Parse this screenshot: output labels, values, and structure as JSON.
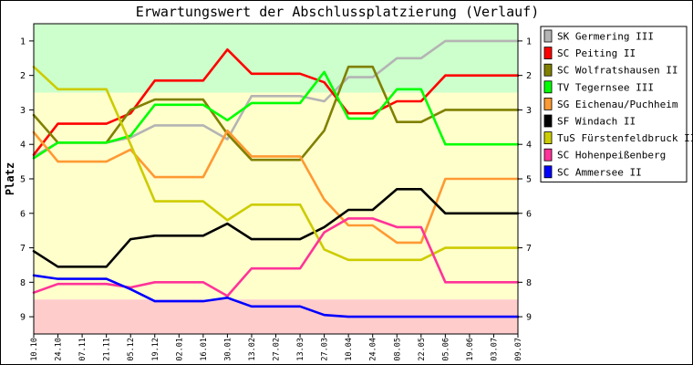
{
  "chart_data": {
    "type": "line",
    "title": "Erwartungswert der Abschlussplatzierung (Verlauf)",
    "ylabel": "Platz",
    "xlabel": "",
    "ylim": [
      0.5,
      9.5
    ],
    "y_inverted": true,
    "yticks": [
      1,
      2,
      3,
      4,
      5,
      6,
      7,
      8,
      9
    ],
    "x": [
      "10.10",
      "24.10",
      "07.11",
      "21.11",
      "05.12",
      "19.12",
      "02.01",
      "16.01",
      "30.01",
      "13.02",
      "27.02",
      "13.03",
      "27.03",
      "10.04",
      "24.04",
      "08.05",
      "22.05",
      "05.06",
      "19.06",
      "03.07",
      "09.07"
    ],
    "bands": [
      {
        "from": 0.5,
        "to": 2.5,
        "color": "#ccffcc"
      },
      {
        "from": 2.5,
        "to": 8.5,
        "color": "#ffffcc"
      },
      {
        "from": 8.5,
        "to": 9.5,
        "color": "#ffcccc"
      }
    ],
    "legend_position": "right",
    "series": [
      {
        "name": "SK Germering III",
        "color": "#b4b4b4",
        "values": [
          4.35,
          3.95,
          3.95,
          3.95,
          3.8,
          3.45,
          3.45,
          3.45,
          3.85,
          2.6,
          2.6,
          2.6,
          2.75,
          2.05,
          2.05,
          1.5,
          1.5,
          1.0,
          1.0,
          1.0,
          1.0
        ]
      },
      {
        "name": "SC Peiting II",
        "color": "#ff0000",
        "values": [
          4.3,
          3.4,
          3.4,
          3.4,
          3.1,
          2.15,
          2.15,
          2.15,
          1.25,
          1.95,
          1.95,
          1.95,
          2.2,
          3.1,
          3.1,
          2.75,
          2.75,
          2.0,
          2.0,
          2.0,
          2.0
        ]
      },
      {
        "name": "SC Wolfratshausen II",
        "color": "#808000",
        "values": [
          3.15,
          3.95,
          3.95,
          3.95,
          3.0,
          2.7,
          2.7,
          2.7,
          3.7,
          4.45,
          4.45,
          4.45,
          3.6,
          1.75,
          1.75,
          3.35,
          3.35,
          3.0,
          3.0,
          3.0,
          3.0
        ]
      },
      {
        "name": "TV Tegernsee III",
        "color": "#00ff00",
        "values": [
          4.4,
          3.95,
          3.95,
          3.95,
          3.75,
          2.85,
          2.85,
          2.85,
          3.3,
          2.8,
          2.8,
          2.8,
          1.9,
          3.25,
          3.25,
          2.4,
          2.4,
          4.0,
          4.0,
          4.0,
          4.0
        ]
      },
      {
        "name": "SG Eichenau/Puchheim",
        "color": "#ff9933",
        "values": [
          3.65,
          4.5,
          4.5,
          4.5,
          4.15,
          4.95,
          4.95,
          4.95,
          3.6,
          4.35,
          4.35,
          4.35,
          5.6,
          6.35,
          6.35,
          6.85,
          6.85,
          5.0,
          5.0,
          5.0,
          5.0
        ]
      },
      {
        "name": "SF Windach II",
        "color": "#000000",
        "values": [
          7.1,
          7.55,
          7.55,
          7.55,
          6.75,
          6.65,
          6.65,
          6.65,
          6.3,
          6.75,
          6.75,
          6.75,
          6.4,
          5.9,
          5.9,
          5.3,
          5.3,
          6.0,
          6.0,
          6.0,
          6.0
        ]
      },
      {
        "name": "TuS Fürstenfeldbruck II",
        "color": "#cccc00",
        "values": [
          1.75,
          2.4,
          2.4,
          2.4,
          4.0,
          5.65,
          5.65,
          5.65,
          6.2,
          5.75,
          5.75,
          5.75,
          7.05,
          7.35,
          7.35,
          7.35,
          7.35,
          7.0,
          7.0,
          7.0,
          7.0
        ]
      },
      {
        "name": "SC Hohenpeißenberg",
        "color": "#ff3399",
        "values": [
          8.3,
          8.05,
          8.05,
          8.05,
          8.15,
          8.0,
          8.0,
          8.0,
          8.4,
          7.6,
          7.6,
          7.6,
          6.55,
          6.15,
          6.15,
          6.4,
          6.4,
          8.0,
          8.0,
          8.0,
          8.0
        ]
      },
      {
        "name": "SC Ammersee II",
        "color": "#0000ff",
        "values": [
          7.8,
          7.9,
          7.9,
          7.9,
          8.2,
          8.55,
          8.55,
          8.55,
          8.45,
          8.7,
          8.7,
          8.7,
          8.95,
          9.0,
          9.0,
          9.0,
          9.0,
          9.0,
          9.0,
          9.0,
          9.0
        ]
      }
    ]
  }
}
